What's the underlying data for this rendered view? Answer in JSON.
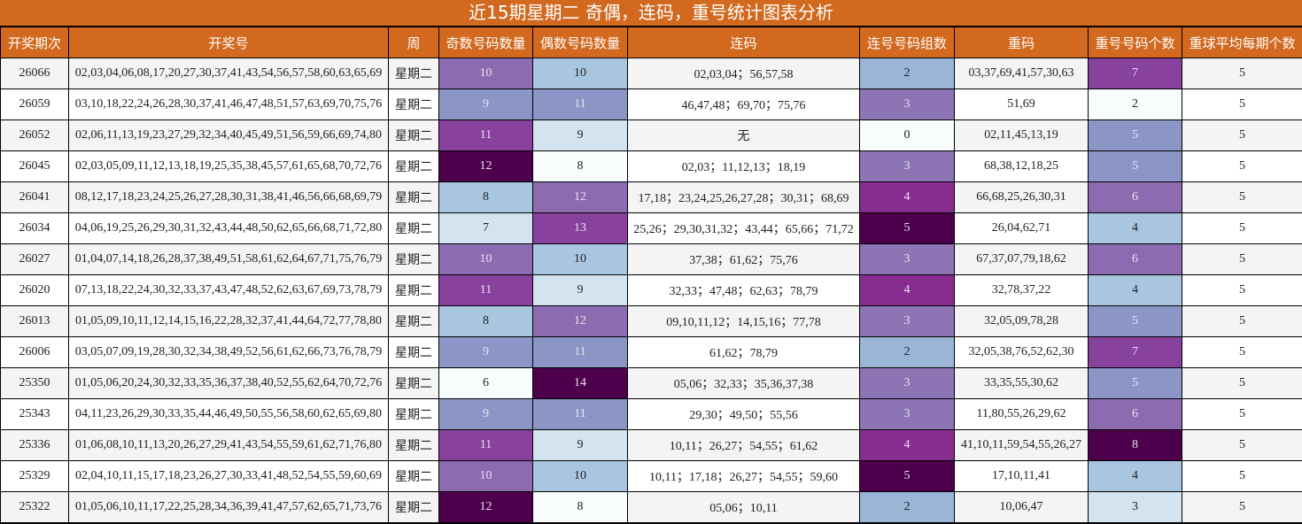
{
  "title": "近15期星期二 奇偶，连码，重号统计图表分析",
  "headers": [
    "开奖期次",
    "开奖号",
    "周",
    "奇数号码数量",
    "偶数号码数量",
    "连码",
    "连号号码组数",
    "重码",
    "重号号码个数",
    "重球平均每期个数"
  ],
  "palette": [
    "#f7fcfd",
    "#d3e3ef",
    "#a9c6e0",
    "#8c96c6",
    "#8c6bb1",
    "#88419d",
    "#4d004b"
  ],
  "lianhao_palette": {
    "0": "#f7fcfd",
    "2": "#9bb5d6",
    "3": "#8c74b5",
    "4": "#872d90",
    "5": "#4d004b"
  },
  "chart_data": {
    "type": "table",
    "rows": [
      {
        "issue": "26066",
        "numbers": "02,03,04,06,08,17,20,27,30,37,41,43,54,56,57,58,60,63,65,69",
        "week": "星期二",
        "odd": 10,
        "even": 10,
        "lianma": "02,03,04；56,57,58",
        "groups": 2,
        "chongma": "03,37,69,41,57,30,63",
        "repeat": 7,
        "avg": 5
      },
      {
        "issue": "26059",
        "numbers": "03,10,18,22,24,26,28,30,37,41,46,47,48,51,57,63,69,70,75,76",
        "week": "星期二",
        "odd": 9,
        "even": 11,
        "lianma": "46,47,48；69,70；75,76",
        "groups": 3,
        "chongma": "51,69",
        "repeat": 2,
        "avg": 5
      },
      {
        "issue": "26052",
        "numbers": "02,06,11,13,19,23,27,29,32,34,40,45,49,51,56,59,66,69,74,80",
        "week": "星期二",
        "odd": 11,
        "even": 9,
        "lianma": "无",
        "groups": 0,
        "chongma": "02,11,45,13,19",
        "repeat": 5,
        "avg": 5
      },
      {
        "issue": "26045",
        "numbers": "02,03,05,09,11,12,13,18,19,25,35,38,45,57,61,65,68,70,72,76",
        "week": "星期二",
        "odd": 12,
        "even": 8,
        "lianma": "02,03；11,12,13；18,19",
        "groups": 3,
        "chongma": "68,38,12,18,25",
        "repeat": 5,
        "avg": 5
      },
      {
        "issue": "26041",
        "numbers": "08,12,17,18,23,24,25,26,27,28,30,31,38,41,46,56,66,68,69,79",
        "week": "星期二",
        "odd": 8,
        "even": 12,
        "lianma": "17,18；23,24,25,26,27,28；30,31；68,69",
        "groups": 4,
        "chongma": "66,68,25,26,30,31",
        "repeat": 6,
        "avg": 5
      },
      {
        "issue": "26034",
        "numbers": "04,06,19,25,26,29,30,31,32,43,44,48,50,62,65,66,68,71,72,80",
        "week": "星期二",
        "odd": 7,
        "even": 13,
        "lianma": "25,26；29,30,31,32；43,44；65,66；71,72",
        "groups": 5,
        "chongma": "26,04,62,71",
        "repeat": 4,
        "avg": 5
      },
      {
        "issue": "26027",
        "numbers": "01,04,07,14,18,26,28,37,38,49,51,58,61,62,64,67,71,75,76,79",
        "week": "星期二",
        "odd": 10,
        "even": 10,
        "lianma": "37,38；61,62；75,76",
        "groups": 3,
        "chongma": "67,37,07,79,18,62",
        "repeat": 6,
        "avg": 5
      },
      {
        "issue": "26020",
        "numbers": "07,13,18,22,24,30,32,33,37,43,47,48,52,62,63,67,69,73,78,79",
        "week": "星期二",
        "odd": 11,
        "even": 9,
        "lianma": "32,33；47,48；62,63；78,79",
        "groups": 4,
        "chongma": "32,78,37,22",
        "repeat": 4,
        "avg": 5
      },
      {
        "issue": "26013",
        "numbers": "01,05,09,10,11,12,14,15,16,22,28,32,37,41,44,64,72,77,78,80",
        "week": "星期二",
        "odd": 8,
        "even": 12,
        "lianma": "09,10,11,12；14,15,16；77,78",
        "groups": 3,
        "chongma": "32,05,09,78,28",
        "repeat": 5,
        "avg": 5
      },
      {
        "issue": "26006",
        "numbers": "03,05,07,09,19,28,30,32,34,38,49,52,56,61,62,66,73,76,78,79",
        "week": "星期二",
        "odd": 9,
        "even": 11,
        "lianma": "61,62；78,79",
        "groups": 2,
        "chongma": "32,05,38,76,52,62,30",
        "repeat": 7,
        "avg": 5
      },
      {
        "issue": "25350",
        "numbers": "01,05,06,20,24,30,32,33,35,36,37,38,40,52,55,62,64,70,72,76",
        "week": "星期二",
        "odd": 6,
        "even": 14,
        "lianma": "05,06；32,33；35,36,37,38",
        "groups": 3,
        "chongma": "33,35,55,30,62",
        "repeat": 5,
        "avg": 5
      },
      {
        "issue": "25343",
        "numbers": "04,11,23,26,29,30,33,35,44,46,49,50,55,56,58,60,62,65,69,80",
        "week": "星期二",
        "odd": 9,
        "even": 11,
        "lianma": "29,30；49,50；55,56",
        "groups": 3,
        "chongma": "11,80,55,26,29,62",
        "repeat": 6,
        "avg": 5
      },
      {
        "issue": "25336",
        "numbers": "01,06,08,10,11,13,20,26,27,29,41,43,54,55,59,61,62,71,76,80",
        "week": "星期二",
        "odd": 11,
        "even": 9,
        "lianma": "10,11；26,27；54,55；61,62",
        "groups": 4,
        "chongma": "41,10,11,59,54,55,26,27",
        "repeat": 8,
        "avg": 5
      },
      {
        "issue": "25329",
        "numbers": "02,04,10,11,15,17,18,23,26,27,30,33,41,48,52,54,55,59,60,69",
        "week": "星期二",
        "odd": 10,
        "even": 10,
        "lianma": "10,11；17,18；26,27；54,55；59,60",
        "groups": 5,
        "chongma": "17,10,11,41",
        "repeat": 4,
        "avg": 5
      },
      {
        "issue": "25322",
        "numbers": "01,05,06,10,11,17,22,25,28,34,36,39,41,47,57,62,65,71,73,76",
        "week": "星期二",
        "odd": 12,
        "even": 8,
        "lianma": "05,06；10,11",
        "groups": 2,
        "chongma": "10,06,47",
        "repeat": 3,
        "avg": 5
      }
    ]
  }
}
